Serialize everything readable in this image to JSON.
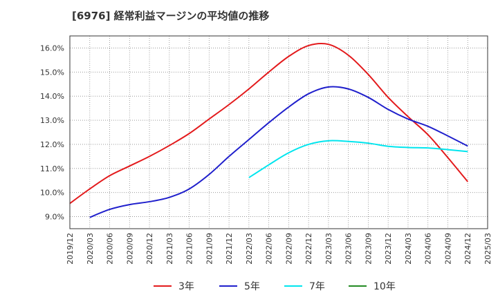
{
  "chart_data": {
    "type": "line",
    "title": "[6976]  経常利益マージンの平均値の推移",
    "xlabel": "",
    "ylabel": "",
    "y_unit": "%",
    "ylim": [
      8.5,
      16.5
    ],
    "y_ticks": [
      "9.0%",
      "10.0%",
      "11.0%",
      "12.0%",
      "13.0%",
      "14.0%",
      "15.0%",
      "16.0%"
    ],
    "x_ticks": [
      "2019/12",
      "2020/03",
      "2020/06",
      "2020/09",
      "2020/12",
      "2021/03",
      "2021/06",
      "2021/09",
      "2021/12",
      "2022/03",
      "2022/06",
      "2022/09",
      "2022/12",
      "2023/03",
      "2023/06",
      "2023/09",
      "2023/12",
      "2024/03",
      "2024/06",
      "2024/09",
      "2024/12",
      "2025/03"
    ],
    "grid": true,
    "legend_position": "bottom",
    "series": [
      {
        "name": "3年",
        "color": "#e31a1c",
        "points": [
          [
            "2019/12",
            9.55
          ],
          [
            "2020/03",
            10.15
          ],
          [
            "2020/06",
            10.7
          ],
          [
            "2020/09",
            11.1
          ],
          [
            "2020/12",
            11.5
          ],
          [
            "2021/03",
            11.95
          ],
          [
            "2021/06",
            12.45
          ],
          [
            "2021/09",
            13.05
          ],
          [
            "2021/12",
            13.65
          ],
          [
            "2022/03",
            14.3
          ],
          [
            "2022/06",
            15.0
          ],
          [
            "2022/09",
            15.65
          ],
          [
            "2022/12",
            16.1
          ],
          [
            "2023/03",
            16.15
          ],
          [
            "2023/06",
            15.7
          ],
          [
            "2023/09",
            14.9
          ],
          [
            "2023/12",
            13.95
          ],
          [
            "2024/03",
            13.15
          ],
          [
            "2024/06",
            12.4
          ],
          [
            "2024/09",
            11.45
          ],
          [
            "2024/12",
            10.45
          ]
        ]
      },
      {
        "name": "5年",
        "color": "#1f1fcc",
        "points": [
          [
            "2020/03",
            8.97
          ],
          [
            "2020/06",
            9.3
          ],
          [
            "2020/09",
            9.5
          ],
          [
            "2020/12",
            9.62
          ],
          [
            "2021/03",
            9.8
          ],
          [
            "2021/06",
            10.15
          ],
          [
            "2021/09",
            10.75
          ],
          [
            "2021/12",
            11.5
          ],
          [
            "2022/03",
            12.2
          ],
          [
            "2022/06",
            12.9
          ],
          [
            "2022/09",
            13.55
          ],
          [
            "2022/12",
            14.1
          ],
          [
            "2023/03",
            14.38
          ],
          [
            "2023/06",
            14.3
          ],
          [
            "2023/09",
            13.95
          ],
          [
            "2023/12",
            13.45
          ],
          [
            "2024/03",
            13.05
          ],
          [
            "2024/06",
            12.75
          ],
          [
            "2024/09",
            12.35
          ],
          [
            "2024/12",
            11.93
          ]
        ]
      },
      {
        "name": "7年",
        "color": "#00e5ee",
        "points": [
          [
            "2022/03",
            10.62
          ],
          [
            "2022/06",
            11.15
          ],
          [
            "2022/09",
            11.65
          ],
          [
            "2022/12",
            12.0
          ],
          [
            "2023/03",
            12.15
          ],
          [
            "2023/06",
            12.12
          ],
          [
            "2023/09",
            12.05
          ],
          [
            "2023/12",
            11.92
          ],
          [
            "2024/03",
            11.87
          ],
          [
            "2024/06",
            11.85
          ],
          [
            "2024/09",
            11.78
          ],
          [
            "2024/12",
            11.7
          ]
        ]
      },
      {
        "name": "10年",
        "color": "#228b22",
        "points": []
      }
    ]
  }
}
